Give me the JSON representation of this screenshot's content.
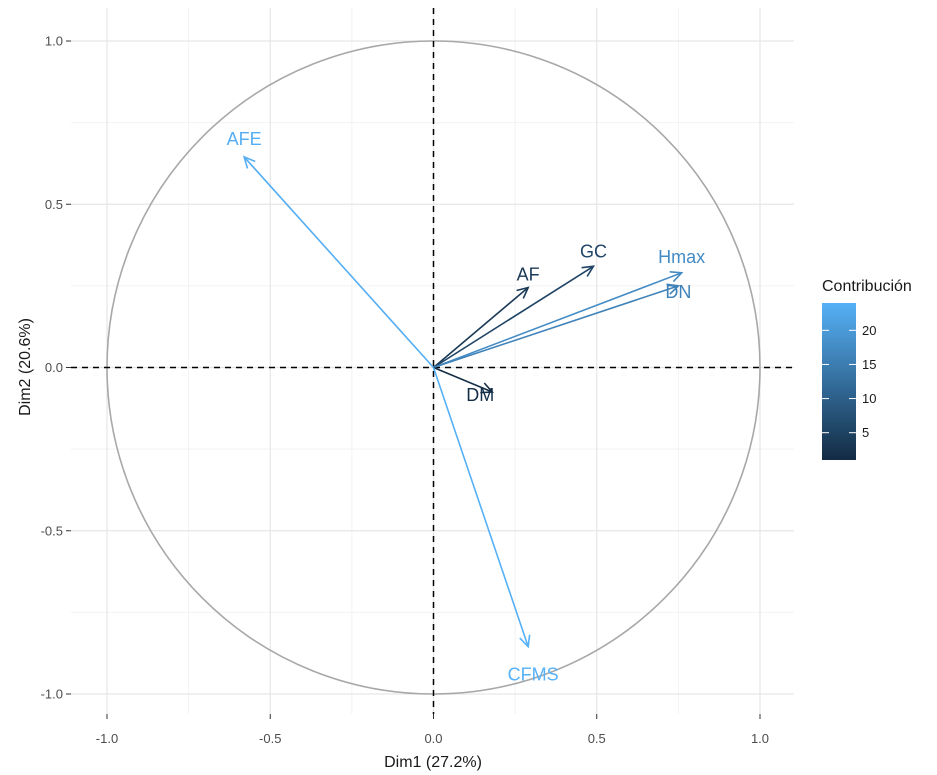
{
  "chart_data": {
    "type": "pca_variable_correlation_circle",
    "xlabel": "Dim1 (27.2%)",
    "ylabel": "Dim2 (20.6%)",
    "xlim": [
      -1.1,
      1.1
    ],
    "ylim": [
      -1.05,
      1.05
    ],
    "x_ticks": [
      -1.0,
      -0.5,
      0.0,
      0.5,
      1.0
    ],
    "y_ticks": [
      -1.0,
      -0.5,
      0.0,
      0.5,
      1.0
    ],
    "x_tick_labels": [
      "-1.0",
      "-0.5",
      "0.0",
      "0.5",
      "1.0"
    ],
    "y_tick_labels": [
      "-1.0",
      "-0.5",
      "0.0",
      "0.5",
      "1.0"
    ],
    "grid": true,
    "reference_lines": "dashed at x=0 and y=0",
    "unit_circle": true,
    "variables": [
      {
        "name": "AFE",
        "x": -0.58,
        "y": 0.645,
        "contrib": 23.5
      },
      {
        "name": "AF",
        "x": 0.29,
        "y": 0.245,
        "contrib": 3.5
      },
      {
        "name": "GC",
        "x": 0.49,
        "y": 0.31,
        "contrib": 5.5
      },
      {
        "name": "Hmax",
        "x": 0.76,
        "y": 0.29,
        "contrib": 17.5
      },
      {
        "name": "DN",
        "x": 0.75,
        "y": 0.25,
        "contrib": 16.0
      },
      {
        "name": "DM",
        "x": 0.18,
        "y": -0.075,
        "contrib": 1.5
      },
      {
        "name": "CFMS",
        "x": 0.29,
        "y": -0.855,
        "contrib": 24.0
      }
    ],
    "legend": {
      "title": "Contribución",
      "placement": "right",
      "min": 1.0,
      "max": 24.0,
      "ticks": [
        5,
        10,
        15,
        20
      ],
      "tick_labels": [
        "5",
        "10",
        "15",
        "20"
      ],
      "low_color": "#132B43",
      "high_color": "#56B1F7"
    }
  }
}
